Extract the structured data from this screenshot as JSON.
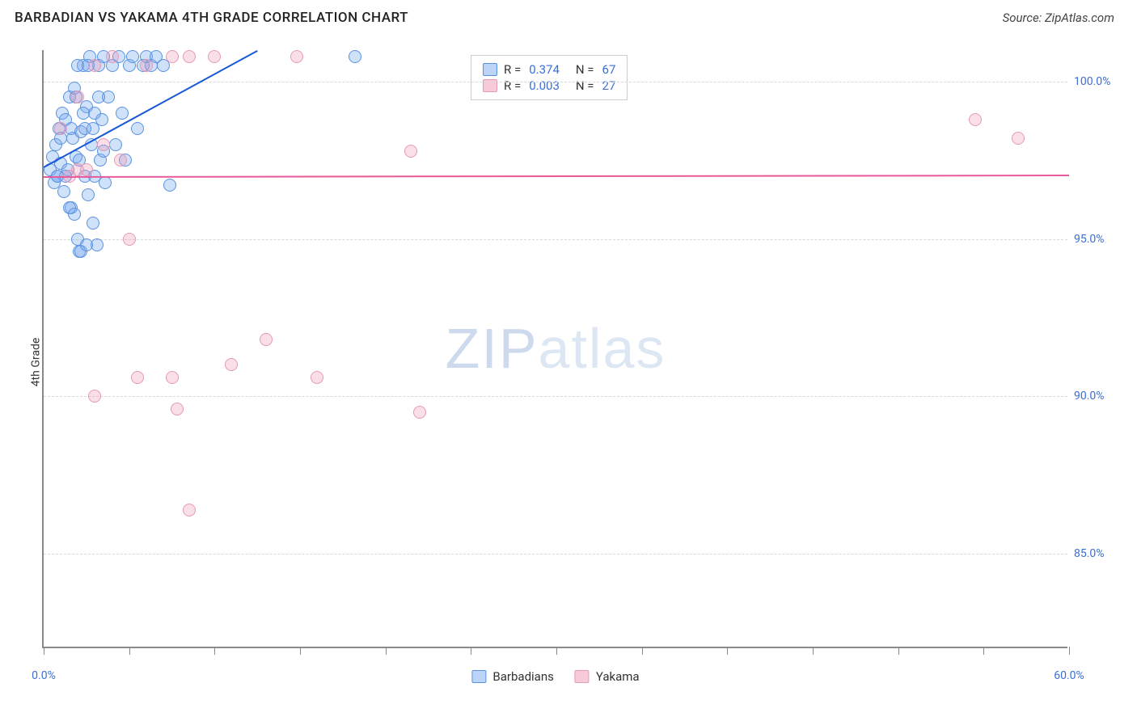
{
  "header": {
    "title": "BARBADIAN VS YAKAMA 4TH GRADE CORRELATION CHART",
    "source": "Source: ZipAtlas.com"
  },
  "chart": {
    "type": "scatter",
    "ylabel": "4th Grade",
    "watermark_bold": "ZIP",
    "watermark_light": "atlas",
    "background_color": "#ffffff",
    "grid_color": "#d8d8d8",
    "axis_color": "#888888",
    "label_color": "#3b6fd6",
    "xlim": [
      0,
      60
    ],
    "ylim": [
      82,
      101
    ],
    "xticks": [
      0,
      5,
      10,
      15,
      20,
      25,
      30,
      35,
      40,
      45,
      50,
      55,
      60
    ],
    "xtick_labels": {
      "0": "0.0%",
      "60": "60.0%"
    },
    "yticks": [
      85,
      90,
      95,
      100
    ],
    "ytick_labels": {
      "85": "85.0%",
      "90": "90.0%",
      "95": "95.0%",
      "100": "100.0%"
    },
    "marker_radius": 8,
    "marker_opacity": 0.35,
    "series": [
      {
        "name": "Barbadians",
        "color_fill": "#78aaf0",
        "color_stroke": "#5a92e0",
        "R": "0.374",
        "N": "67",
        "trend": {
          "x1": 0,
          "y1": 97.3,
          "x2": 12.5,
          "y2": 101,
          "color": "#1858d6",
          "width": 2
        },
        "points": [
          [
            0.4,
            97.2
          ],
          [
            0.5,
            97.6
          ],
          [
            0.6,
            96.8
          ],
          [
            0.7,
            98.0
          ],
          [
            0.8,
            97.0
          ],
          [
            0.9,
            98.5
          ],
          [
            1.0,
            97.4
          ],
          [
            1.1,
            99.0
          ],
          [
            1.2,
            96.5
          ],
          [
            1.3,
            98.8
          ],
          [
            1.4,
            97.2
          ],
          [
            1.5,
            99.5
          ],
          [
            1.6,
            96.0
          ],
          [
            1.7,
            98.2
          ],
          [
            1.8,
            99.8
          ],
          [
            1.9,
            97.6
          ],
          [
            2.0,
            95.0
          ],
          [
            2.1,
            94.6
          ],
          [
            2.2,
            98.4
          ],
          [
            2.3,
            100.5
          ],
          [
            2.4,
            97.0
          ],
          [
            2.5,
            99.2
          ],
          [
            2.6,
            96.4
          ],
          [
            2.7,
            100.8
          ],
          [
            2.8,
            98.0
          ],
          [
            2.9,
            95.5
          ],
          [
            3.0,
            99.0
          ],
          [
            3.1,
            94.8
          ],
          [
            3.2,
            100.5
          ],
          [
            3.3,
            97.5
          ],
          [
            3.4,
            98.8
          ],
          [
            3.5,
            100.8
          ],
          [
            3.6,
            96.8
          ],
          [
            3.8,
            99.5
          ],
          [
            4.0,
            100.5
          ],
          [
            4.2,
            98.0
          ],
          [
            4.4,
            100.8
          ],
          [
            4.6,
            99.0
          ],
          [
            4.8,
            97.5
          ],
          [
            5.0,
            100.5
          ],
          [
            5.2,
            100.8
          ],
          [
            5.5,
            98.5
          ],
          [
            5.8,
            100.5
          ],
          [
            6.0,
            100.8
          ],
          [
            6.3,
            100.5
          ],
          [
            6.6,
            100.8
          ],
          [
            7.0,
            100.5
          ],
          [
            7.4,
            96.7
          ],
          [
            2.2,
            94.6
          ],
          [
            2.5,
            94.8
          ],
          [
            1.5,
            96.0
          ],
          [
            1.8,
            95.8
          ],
          [
            0.8,
            97.0
          ],
          [
            1.0,
            98.2
          ],
          [
            3.0,
            97.0
          ],
          [
            2.0,
            100.5
          ],
          [
            2.3,
            99.0
          ],
          [
            2.6,
            100.5
          ],
          [
            2.9,
            98.5
          ],
          [
            3.2,
            99.5
          ],
          [
            3.5,
            97.8
          ],
          [
            1.3,
            97.0
          ],
          [
            1.6,
            98.5
          ],
          [
            1.9,
            99.5
          ],
          [
            2.1,
            97.5
          ],
          [
            2.4,
            98.5
          ],
          [
            18.2,
            100.8
          ]
        ]
      },
      {
        "name": "Yakama",
        "color_fill": "#f096b4",
        "color_stroke": "#e49ab5",
        "R": "0.003",
        "N": "27",
        "trend": {
          "x1": 0,
          "y1": 97.0,
          "x2": 60,
          "y2": 97.05,
          "color": "#e85a9a",
          "width": 2
        },
        "points": [
          [
            1.0,
            98.5
          ],
          [
            1.5,
            97.0
          ],
          [
            2.0,
            99.5
          ],
          [
            2.5,
            97.2
          ],
          [
            3.0,
            100.5
          ],
          [
            3.5,
            98.0
          ],
          [
            4.0,
            100.8
          ],
          [
            4.5,
            97.5
          ],
          [
            5.0,
            95.0
          ],
          [
            6.0,
            100.5
          ],
          [
            7.5,
            100.8
          ],
          [
            8.5,
            100.8
          ],
          [
            10.0,
            100.8
          ],
          [
            14.8,
            100.8
          ],
          [
            21.5,
            97.8
          ],
          [
            3.0,
            90.0
          ],
          [
            5.5,
            90.6
          ],
          [
            7.5,
            90.6
          ],
          [
            16.0,
            90.6
          ],
          [
            7.8,
            89.6
          ],
          [
            13.0,
            91.8
          ],
          [
            11.0,
            91.0
          ],
          [
            8.5,
            86.4
          ],
          [
            54.5,
            98.8
          ],
          [
            57.0,
            98.2
          ],
          [
            22.0,
            89.5
          ],
          [
            2.0,
            97.2
          ]
        ]
      }
    ],
    "stats_legend": {
      "rows": [
        {
          "swatch": "b",
          "R": "0.374",
          "N": "67"
        },
        {
          "swatch": "p",
          "R": "0.003",
          "N": "27"
        }
      ],
      "r_label": "R =",
      "n_label": "N ="
    },
    "bottom_legend": [
      {
        "swatch": "b",
        "label": "Barbadians"
      },
      {
        "swatch": "p",
        "label": "Yakama"
      }
    ]
  }
}
